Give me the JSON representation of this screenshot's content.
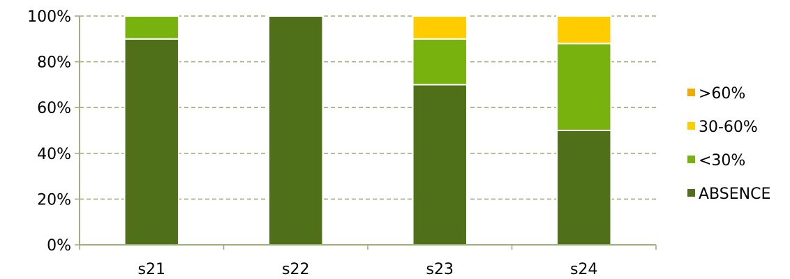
{
  "chart_data": {
    "type": "bar",
    "stacked": true,
    "categories": [
      "s21",
      "s22",
      "s23",
      "s24"
    ],
    "series": [
      {
        "name": "ABSENCE",
        "color": "#4f7019",
        "values": [
          90,
          100,
          70,
          50
        ]
      },
      {
        "name": "<30%",
        "color": "#77b20f",
        "values": [
          10,
          0,
          20,
          38
        ]
      },
      {
        "name": "30-60%",
        "color": "#ffcc00",
        "values": [
          0,
          0,
          10,
          12
        ]
      },
      {
        "name": ">60%",
        "color": "#f2a900",
        "values": [
          0,
          0,
          0,
          0
        ]
      }
    ],
    "yticks": [
      "0%",
      "20%",
      "40%",
      "60%",
      "80%",
      "100%"
    ],
    "ylim": [
      0,
      100
    ],
    "grid": true,
    "grid_style": "dashed",
    "legend_position": "right",
    "axis_color": "#9bb07a"
  }
}
